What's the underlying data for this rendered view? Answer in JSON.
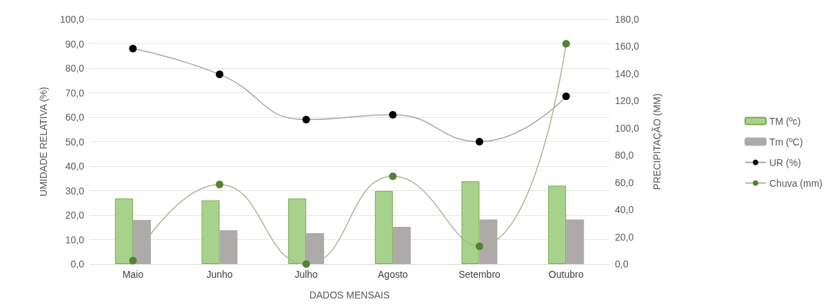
{
  "chart_data": {
    "type": "bar",
    "xlabel": "DADOS MENSAIS",
    "ylabel": "UMIDADE RELATIVA (%)",
    "y2label": "PRECIPITAÇÃO (MM)",
    "categories": [
      "Maio",
      "Junho",
      "Julho",
      "Agosto",
      "Setembro",
      "Outubro"
    ],
    "series": [
      {
        "name": "TM (ºc)",
        "color": "#a9d18e",
        "values": [
          26.8,
          26.0,
          26.8,
          29.8,
          33.8,
          32.0
        ]
      },
      {
        "name": "Tm (ºC)",
        "color": "#aeaaaa",
        "values": [
          18.0,
          13.8,
          12.6,
          15.2,
          18.2,
          18.2
        ]
      },
      {
        "name": "UR (%)",
        "type": "line",
        "color": "#000000",
        "values": [
          88,
          77.5,
          59,
          61,
          50,
          68.5
        ]
      },
      {
        "name": "Chuva (mm)",
        "type": "line",
        "axis": "y2",
        "color": "#548235",
        "values": [
          2.5,
          58.5,
          0,
          64.5,
          13,
          162
        ]
      }
    ],
    "ylim": [
      0,
      100
    ],
    "yticks": [
      {
        "value": 0,
        "label": "0,0"
      },
      {
        "value": 10,
        "label": "10,0"
      },
      {
        "value": 20,
        "label": "20,0"
      },
      {
        "value": 30,
        "label": "30,0"
      },
      {
        "value": 40,
        "label": "40,0"
      },
      {
        "value": 50,
        "label": "50,0"
      },
      {
        "value": 60,
        "label": "60,0"
      },
      {
        "value": 70,
        "label": "70,0"
      },
      {
        "value": 80,
        "label": "80,0"
      },
      {
        "value": 90,
        "label": "90,0"
      },
      {
        "value": 100,
        "label": "100,0"
      }
    ],
    "y2lim": [
      0,
      180
    ],
    "y2ticks": [
      {
        "value": 0,
        "label": "0,0"
      },
      {
        "value": 20,
        "label": "20,0"
      },
      {
        "value": 40,
        "label": "40,0"
      },
      {
        "value": 60,
        "label": "60,0"
      },
      {
        "value": 80,
        "label": "80,0"
      },
      {
        "value": 100,
        "label": "100,0"
      },
      {
        "value": 120,
        "label": "120,0"
      },
      {
        "value": 140,
        "label": "140,0"
      },
      {
        "value": 160,
        "label": "160,0"
      },
      {
        "value": 180,
        "label": "180,0"
      }
    ],
    "grid": "y",
    "legend": "right",
    "marker": "circle"
  }
}
